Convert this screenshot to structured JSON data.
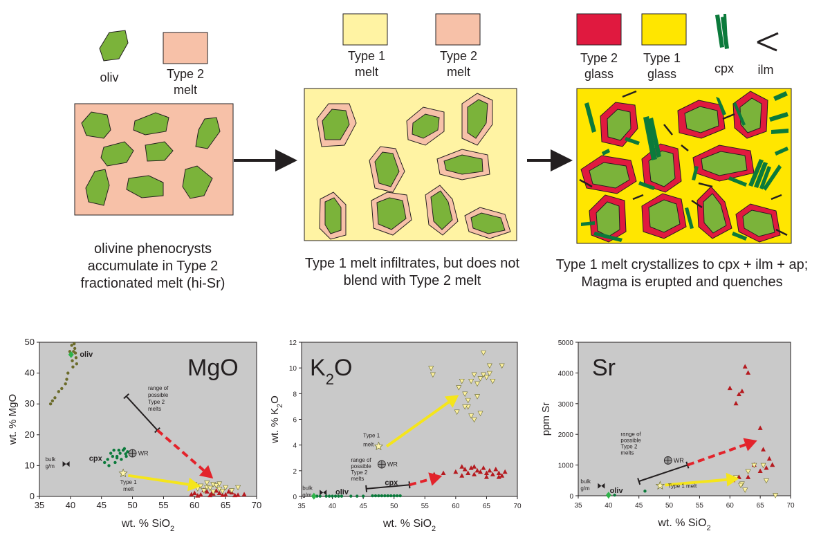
{
  "colors": {
    "type2_melt": "#f7c1a8",
    "type1_melt": "#fff3a3",
    "type2_glass": "#e0193f",
    "type1_glass": "#ffe600",
    "olivine": "#7bb33a",
    "cpx": "#0b7a3b",
    "ilm": "#231f20",
    "plot_bg": "#c9c9c9",
    "arrow_yellow": "#f5e51b",
    "arrow_red": "#e3232b"
  },
  "legend": {
    "oliv": "oliv",
    "type2_melt_1": [
      "Type 2",
      "melt"
    ],
    "type1_melt_2": [
      "Type 1",
      "melt"
    ],
    "type2_melt_2": [
      "Type 2",
      "melt"
    ],
    "type2_glass": [
      "Type 2",
      "glass"
    ],
    "type1_glass": [
      "Type 1",
      "glass"
    ],
    "cpx": "cpx",
    "ilm": "ilm"
  },
  "captions": {
    "panel1": [
      "olivine phenocrysts",
      "accumulate in Type 2",
      "fractionated melt (hi-Sr)"
    ],
    "panel2": [
      "Type 1 melt infiltrates, but does not",
      "blend with Type 2 melt"
    ],
    "panel3": [
      "Type 1 melt crystallizes to cpx + ilm + ap;",
      "Magma is erupted and quenches"
    ]
  },
  "chart_data": [
    {
      "type": "scatter",
      "title": "MgO",
      "xlabel": "wt. % SiO2",
      "ylabel": "wt. % MgO",
      "xlim": [
        35,
        70
      ],
      "ylim": [
        0,
        50
      ],
      "xticks": [
        35,
        40,
        45,
        50,
        55,
        60,
        65,
        70
      ],
      "yticks": [
        0,
        10,
        20,
        30,
        40,
        50
      ],
      "annotations": {
        "oliv": "oliv",
        "cpx": "cpx",
        "wr": "WR",
        "bulk": [
          "bulk",
          "g/m"
        ],
        "type1": [
          "Type 1",
          "melt"
        ],
        "range": [
          "range of",
          "possible",
          "Type 2",
          "melts"
        ]
      },
      "points": {
        "olivine": [
          [
            40.1,
            46
          ],
          [
            40.3,
            44
          ],
          [
            40.5,
            47
          ],
          [
            40.7,
            48
          ],
          [
            40.9,
            45
          ],
          [
            41,
            43
          ],
          [
            40.2,
            49
          ],
          [
            39.9,
            47
          ],
          [
            40.6,
            49.5
          ],
          [
            40.8,
            46.5
          ],
          [
            39.4,
            38
          ],
          [
            38.6,
            35
          ],
          [
            37.5,
            32
          ],
          [
            36.8,
            30
          ],
          [
            37.1,
            31
          ],
          [
            38.1,
            34
          ],
          [
            39.6,
            40
          ],
          [
            40.4,
            42
          ],
          [
            39.2,
            36.5
          ]
        ],
        "cpx": [
          [
            46,
            12
          ],
          [
            46.5,
            14
          ],
          [
            47,
            15
          ],
          [
            47.5,
            13
          ],
          [
            48,
            14
          ],
          [
            48.5,
            15
          ],
          [
            49,
            13
          ],
          [
            48.2,
            12
          ],
          [
            47.2,
            11
          ],
          [
            46.2,
            10
          ],
          [
            49.2,
            14.5
          ],
          [
            48.7,
            15.5
          ],
          [
            47.8,
            15
          ],
          [
            46.8,
            13
          ],
          [
            45.5,
            11
          ],
          [
            47.5,
            12.5
          ],
          [
            48.9,
            13.8
          ]
        ],
        "type2": [
          [
            60,
            1
          ],
          [
            61,
            0.5
          ],
          [
            62,
            1.5
          ],
          [
            63,
            0.8
          ],
          [
            64,
            1
          ],
          [
            65,
            0.5
          ],
          [
            66,
            1.2
          ],
          [
            67,
            0.4
          ],
          [
            68,
            0.6
          ],
          [
            61.5,
            2
          ],
          [
            63.5,
            1.8
          ],
          [
            65.5,
            1.5
          ],
          [
            62.5,
            0.3
          ],
          [
            64.5,
            0.4
          ],
          [
            60.5,
            0.2
          ],
          [
            66.5,
            0.3
          ],
          [
            59.5,
            0.6
          ],
          [
            62.8,
            1.1
          ]
        ],
        "type1": [
          [
            60,
            4
          ],
          [
            61,
            3.5
          ],
          [
            62,
            3
          ],
          [
            63,
            4
          ],
          [
            64,
            2.5
          ],
          [
            65,
            3
          ],
          [
            61.5,
            2
          ],
          [
            62.5,
            2.8
          ],
          [
            63.5,
            3.6
          ],
          [
            64.5,
            1.8
          ],
          [
            60.5,
            2.6
          ],
          [
            66,
            2
          ],
          [
            67,
            3
          ],
          [
            62,
            4.5
          ],
          [
            63,
            1.6
          ],
          [
            64,
            4.2
          ]
        ],
        "wr": [
          50,
          14
        ],
        "bulk": [
          39.3,
          10.5
        ],
        "type1_melt": [
          48.5,
          7.5
        ]
      },
      "arrows": {
        "range_bar": [
          [
            49,
            32.5
          ],
          [
            54,
            21.5
          ]
        ],
        "red": [
          [
            54,
            21.5
          ],
          [
            63,
            5.8
          ]
        ],
        "yellow": [
          [
            49.3,
            6.8
          ],
          [
            61,
            3.3
          ]
        ]
      }
    },
    {
      "type": "scatter",
      "title": "K2O",
      "xlabel": "wt. % SiO2",
      "ylabel": "wt. % K2O",
      "xlim": [
        35,
        70
      ],
      "ylim": [
        0,
        12
      ],
      "xticks": [
        35,
        40,
        45,
        50,
        55,
        60,
        65,
        70
      ],
      "yticks": [
        0,
        2,
        4,
        6,
        8,
        10,
        12
      ],
      "annotations": {
        "oliv": "oliv",
        "cpx": "cpx",
        "wr": "WR",
        "bulk": [
          "bulk",
          "g/m"
        ],
        "type1": [
          "Type 1",
          "melt"
        ],
        "range": [
          "range of",
          "possible",
          "Type 2",
          "melts"
        ]
      },
      "points": {
        "olivine": [
          [
            37,
            0.02
          ],
          [
            37.5,
            0.02
          ],
          [
            38,
            0.02
          ],
          [
            39,
            0.02
          ],
          [
            39.5,
            0.02
          ],
          [
            40,
            0.02
          ],
          [
            40.5,
            0.02
          ],
          [
            41,
            0.02
          ],
          [
            41.5,
            0.02
          ],
          [
            43,
            0.02
          ],
          [
            44,
            0.02
          ],
          [
            45,
            0.02
          ]
        ],
        "cpx": [
          [
            46.5,
            0.05
          ],
          [
            47,
            0.05
          ],
          [
            47.5,
            0.05
          ],
          [
            48,
            0.05
          ],
          [
            48.5,
            0.05
          ],
          [
            49,
            0.05
          ],
          [
            49.5,
            0.05
          ],
          [
            50,
            0.05
          ],
          [
            50.5,
            0.05
          ],
          [
            51,
            0.05
          ]
        ],
        "type2": [
          [
            56.5,
            1.7
          ],
          [
            58,
            1.8
          ],
          [
            60,
            1.9
          ],
          [
            61,
            1.6
          ],
          [
            61.5,
            2.1
          ],
          [
            62,
            1.8
          ],
          [
            62.5,
            2.2
          ],
          [
            63,
            1.7
          ],
          [
            63.5,
            2
          ],
          [
            64,
            1.9
          ],
          [
            64.5,
            2.2
          ],
          [
            65,
            1.8
          ],
          [
            65.5,
            2
          ],
          [
            66,
            1.7
          ],
          [
            66.5,
            2.1
          ],
          [
            67,
            1.8
          ],
          [
            67.5,
            1.6
          ],
          [
            68,
            1.9
          ],
          [
            61,
            2.3
          ],
          [
            63,
            2.3
          ],
          [
            65,
            1.5
          ],
          [
            67,
            1.5
          ]
        ],
        "type1": [
          [
            56,
            10
          ],
          [
            56.3,
            9.5
          ],
          [
            60.5,
            8.5
          ],
          [
            61,
            9
          ],
          [
            61.5,
            8
          ],
          [
            62,
            7.5
          ],
          [
            62.5,
            9
          ],
          [
            63,
            9.5
          ],
          [
            63.5,
            8.8
          ],
          [
            64,
            9.2
          ],
          [
            64.5,
            9.5
          ],
          [
            65,
            9.3
          ],
          [
            65.5,
            9.6
          ],
          [
            66,
            9
          ],
          [
            62,
            7
          ],
          [
            63,
            6
          ],
          [
            64,
            6.5
          ],
          [
            62.5,
            6.3
          ],
          [
            64.5,
            11.2
          ],
          [
            65.5,
            10.2
          ],
          [
            67.5,
            10.2
          ],
          [
            61.5,
            7
          ],
          [
            63.5,
            7.8
          ],
          [
            60.2,
            6.6
          ]
        ],
        "wr": [
          48,
          2.5
        ],
        "bulk": [
          38.5,
          0.3
        ],
        "type1_melt": [
          47.5,
          3.9
        ]
      },
      "arrows": {
        "range_bar": [
          [
            45.5,
            0.6
          ],
          [
            52.5,
            0.9
          ]
        ],
        "red": [
          [
            52.5,
            0.9
          ],
          [
            57.8,
            1.6
          ]
        ],
        "yellow": [
          [
            48.8,
            3.9
          ],
          [
            60.5,
            7.9
          ]
        ]
      }
    },
    {
      "type": "scatter",
      "title": "Sr",
      "xlabel": "wt. % SiO2",
      "ylabel": "ppm Sr",
      "xlim": [
        35,
        70
      ],
      "ylim": [
        0,
        5000
      ],
      "xticks": [
        35,
        40,
        45,
        50,
        55,
        60,
        65,
        70
      ],
      "yticks": [
        0,
        1000,
        2000,
        3000,
        4000,
        5000
      ],
      "annotations": {
        "oliv": "oliv",
        "wr": "WR",
        "bulk": [
          "bulk",
          "g/m"
        ],
        "type1": "Type 1 melt",
        "range": [
          "range of",
          "possible",
          "Type 2",
          "melts"
        ]
      },
      "points": {
        "olivine": [
          [
            40,
            20
          ],
          [
            41,
            20
          ]
        ],
        "cpx": [
          [
            46,
            150
          ]
        ],
        "type2": [
          [
            60,
            3500
          ],
          [
            61,
            3000
          ],
          [
            61.5,
            3300
          ],
          [
            62,
            3400
          ],
          [
            62.5,
            4200
          ],
          [
            63,
            4000
          ],
          [
            65,
            2200
          ],
          [
            65.5,
            1500
          ],
          [
            66,
            900
          ],
          [
            66.5,
            1200
          ],
          [
            67,
            1000
          ],
          [
            60.5,
            500
          ],
          [
            61.5,
            600
          ],
          [
            64,
            1000
          ],
          [
            65,
            800
          ],
          [
            67,
            1000
          ],
          [
            63,
            600
          ]
        ],
        "type1": [
          [
            61,
            600
          ],
          [
            62,
            400
          ],
          [
            62.5,
            200
          ],
          [
            64,
            1000
          ],
          [
            65.5,
            1000
          ],
          [
            67.5,
            20
          ],
          [
            61.8,
            350
          ],
          [
            63,
            800
          ],
          [
            66,
            500
          ]
        ],
        "wr": [
          49.8,
          1150
        ],
        "bulk": [
          38.8,
          320
        ],
        "type1_melt": [
          48.5,
          330
        ]
      },
      "arrows": {
        "range_bar": [
          [
            45,
            470
          ],
          [
            53,
            1000
          ]
        ],
        "red": [
          [
            53,
            1000
          ],
          [
            64.5,
            1800
          ]
        ],
        "yellow": [
          [
            49.3,
            350
          ],
          [
            61.5,
            560
          ]
        ]
      }
    }
  ]
}
